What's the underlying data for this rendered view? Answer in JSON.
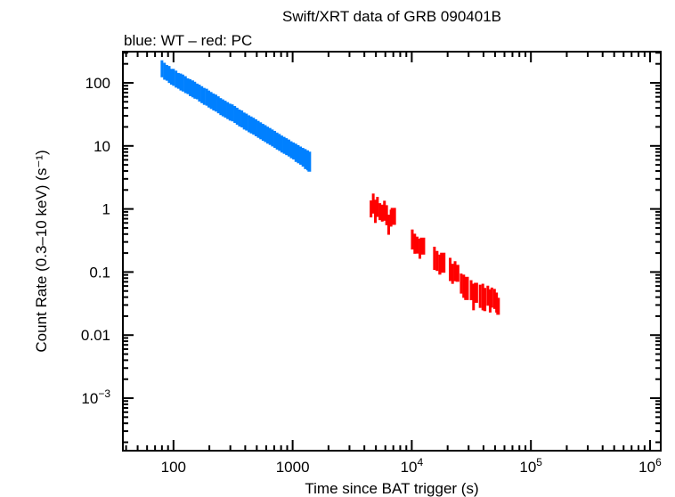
{
  "chart_data": {
    "type": "scatter",
    "title": "Swift/XRT data of GRB 090401B",
    "subtitle": "blue: WT – red: PC",
    "xlabel": "Time since BAT trigger (s)",
    "ylabel": "Count Rate (0.3–10 keV) (s⁻¹)",
    "xscale": "log",
    "yscale": "log",
    "xlim": [
      37.6,
      1230000
    ],
    "ylim": [
      0.000147,
      312
    ],
    "grid": false,
    "x_ticks": [
      {
        "value": 100,
        "label": "100"
      },
      {
        "value": 1000,
        "label": "1000"
      },
      {
        "value": 10000,
        "base": "10",
        "exp": "4"
      },
      {
        "value": 100000,
        "base": "10",
        "exp": "5"
      },
      {
        "value": 1000000,
        "base": "10",
        "exp": "6"
      }
    ],
    "y_ticks": [
      {
        "value": 100,
        "label": "100"
      },
      {
        "value": 10,
        "label": "10"
      },
      {
        "value": 1,
        "label": "1"
      },
      {
        "value": 0.1,
        "label": "0.1"
      },
      {
        "value": 0.01,
        "label": "0.01"
      },
      {
        "value": 0.001,
        "base": "10",
        "exp": "−3"
      }
    ],
    "series": [
      {
        "mode": "WT",
        "color": "#0080ff",
        "points": [
          [
            80,
            175,
            0.3
          ],
          [
            84,
            160,
            0.3
          ],
          [
            88,
            150,
            0.28
          ],
          [
            92,
            142,
            0.3
          ],
          [
            96,
            130,
            0.28
          ],
          [
            100,
            128,
            0.3
          ],
          [
            105,
            120,
            0.3
          ],
          [
            110,
            112,
            0.28
          ],
          [
            115,
            108,
            0.3
          ],
          [
            120,
            104,
            0.3
          ],
          [
            126,
            98,
            0.3
          ],
          [
            132,
            92,
            0.28
          ],
          [
            138,
            88,
            0.3
          ],
          [
            145,
            84,
            0.3
          ],
          [
            151,
            80,
            0.3
          ],
          [
            158,
            76,
            0.28
          ],
          [
            165,
            72,
            0.3
          ],
          [
            173,
            68,
            0.3
          ],
          [
            181,
            64,
            0.3
          ],
          [
            190,
            62,
            0.3
          ],
          [
            198,
            58,
            0.3
          ],
          [
            207,
            55,
            0.3
          ],
          [
            217,
            52,
            0.3
          ],
          [
            227,
            50,
            0.3
          ],
          [
            238,
            47,
            0.3
          ],
          [
            249,
            44,
            0.3
          ],
          [
            260,
            42,
            0.3
          ],
          [
            272,
            40,
            0.3
          ],
          [
            285,
            38,
            0.3
          ],
          [
            298,
            36,
            0.3
          ],
          [
            312,
            35,
            0.3
          ],
          [
            327,
            33,
            0.3
          ],
          [
            342,
            31,
            0.3
          ],
          [
            358,
            29,
            0.3
          ],
          [
            375,
            28,
            0.3
          ],
          [
            392,
            26,
            0.3
          ],
          [
            410,
            25,
            0.3
          ],
          [
            430,
            23.5,
            0.3
          ],
          [
            449,
            22.5,
            0.3
          ],
          [
            470,
            21.5,
            0.3
          ],
          [
            492,
            20.3,
            0.3
          ],
          [
            515,
            19.2,
            0.3
          ],
          [
            539,
            18.2,
            0.3
          ],
          [
            564,
            17.2,
            0.3
          ],
          [
            590,
            16.4,
            0.3
          ],
          [
            617,
            15.5,
            0.3
          ],
          [
            646,
            14.8,
            0.3
          ],
          [
            676,
            14,
            0.3
          ],
          [
            708,
            13.3,
            0.3
          ],
          [
            740,
            12.5,
            0.3
          ],
          [
            775,
            11.9,
            0.3
          ],
          [
            811,
            11.2,
            0.3
          ],
          [
            849,
            10.7,
            0.3
          ],
          [
            888,
            10.2,
            0.3
          ],
          [
            930,
            9.7,
            0.3
          ],
          [
            973,
            9.1,
            0.3
          ],
          [
            1018,
            8.7,
            0.3
          ],
          [
            1065,
            8.2,
            0.32
          ],
          [
            1115,
            7.8,
            0.32
          ],
          [
            1166,
            7.4,
            0.32
          ],
          [
            1220,
            7.0,
            0.33
          ],
          [
            1277,
            6.6,
            0.35
          ],
          [
            1336,
            6.3,
            0.35
          ],
          [
            1380,
            6.0,
            0.35
          ]
        ]
      },
      {
        "mode": "PC",
        "color": "#ff0000",
        "points": [
          [
            4550,
            1.05,
            0.3
          ],
          [
            4750,
            1.3,
            0.35
          ],
          [
            4950,
            1.0,
            0.4
          ],
          [
            5150,
            1.15,
            0.35
          ],
          [
            5400,
            0.95,
            0.3
          ],
          [
            5650,
            0.9,
            0.3
          ],
          [
            5900,
            1.0,
            0.35
          ],
          [
            6150,
            0.85,
            0.35
          ],
          [
            6400,
            0.6,
            0.35
          ],
          [
            6700,
            0.75,
            0.3
          ],
          [
            7000,
            0.8,
            0.3
          ],
          [
            10100,
            0.35,
            0.35
          ],
          [
            10600,
            0.3,
            0.35
          ],
          [
            11100,
            0.28,
            0.3
          ],
          [
            11700,
            0.25,
            0.35
          ],
          [
            12300,
            0.27,
            0.3
          ],
          [
            15500,
            0.18,
            0.4
          ],
          [
            16300,
            0.16,
            0.35
          ],
          [
            17200,
            0.14,
            0.35
          ],
          [
            18200,
            0.15,
            0.35
          ],
          [
            21000,
            0.12,
            0.4
          ],
          [
            22000,
            0.1,
            0.35
          ],
          [
            23100,
            0.11,
            0.35
          ],
          [
            24200,
            0.1,
            0.3
          ],
          [
            26000,
            0.07,
            0.35
          ],
          [
            27300,
            0.065,
            0.4
          ],
          [
            28800,
            0.06,
            0.4
          ],
          [
            31500,
            0.055,
            0.35
          ],
          [
            33000,
            0.045,
            0.45
          ],
          [
            34600,
            0.05,
            0.35
          ],
          [
            37500,
            0.045,
            0.4
          ],
          [
            39500,
            0.045,
            0.45
          ],
          [
            41000,
            0.04,
            0.4
          ],
          [
            43500,
            0.045,
            0.35
          ],
          [
            45500,
            0.038,
            0.4
          ],
          [
            47000,
            0.042,
            0.35
          ],
          [
            49500,
            0.04,
            0.35
          ],
          [
            51500,
            0.035,
            0.35
          ],
          [
            53000,
            0.03,
            0.3
          ]
        ]
      }
    ]
  }
}
